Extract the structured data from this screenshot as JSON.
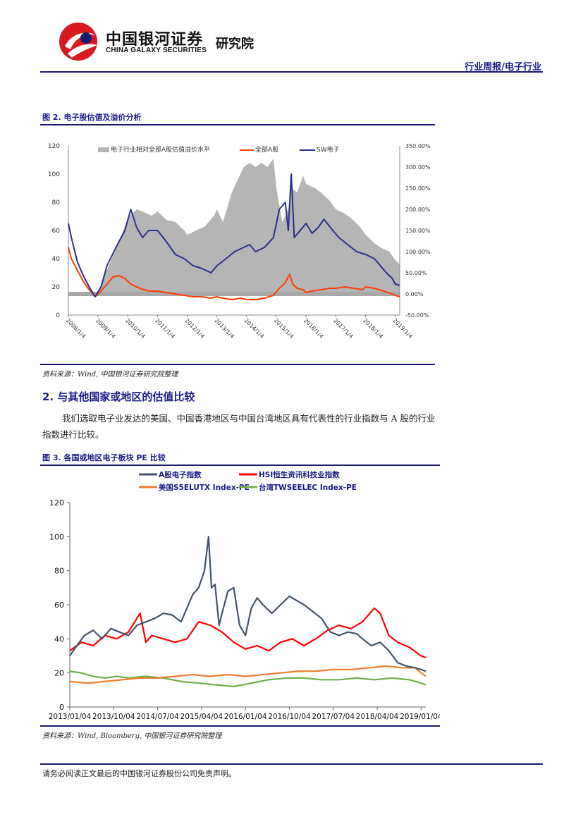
{
  "header": {
    "company_cn": "中国银河证券",
    "company_en": "CHINA GALAXY SECURITIES",
    "institute": "研究院",
    "report_type": "行业周报/电子行业"
  },
  "figure2": {
    "title": "图 2. 电子股估值及溢价分析",
    "source": "资料来源：Wind, 中国银河证券研究院整理",
    "chart_data": {
      "type": "area",
      "x_ticks": [
        "2008/1/4",
        "2009/1/4",
        "2010/1/4",
        "2011/1/4",
        "2012/1/4",
        "2013/1/4",
        "2014/1/4",
        "2015/1/4",
        "2016/1/4",
        "2017/1/4",
        "2018/1/4",
        "2019/1/4"
      ],
      "left_ticks": [
        "0",
        "20",
        "40",
        "60",
        "80",
        "100",
        "120"
      ],
      "right_ticks": [
        "-50.00%",
        "0.00%",
        "50.00%",
        "100.00%",
        "150.00%",
        "200.00%",
        "250.00%",
        "300.00%",
        "350.00%"
      ],
      "ylim_left": [
        0,
        120
      ],
      "ylim_right": [
        -50,
        350
      ],
      "legend": [
        "电子行业相对全部A股估值溢价水平",
        "全部A股",
        "SW电子"
      ],
      "colors": {
        "premium": "#b5b5b5",
        "all_a": "#ff3d00",
        "sw": "#2a2f8c"
      },
      "series": [
        {
          "name": "电子行业相对全部A股估值溢价水平",
          "axis": "right",
          "x": [
            2008.0,
            2008.3,
            2008.6,
            2008.9,
            2009.0,
            2009.2,
            2009.5,
            2009.8,
            2010.0,
            2010.3,
            2010.5,
            2010.8,
            2011.0,
            2011.3,
            2011.6,
            2011.9,
            2012.0,
            2012.3,
            2012.6,
            2012.9,
            2013.0,
            2013.2,
            2013.5,
            2013.7,
            2013.9,
            2014.1,
            2014.3,
            2014.5,
            2014.7,
            2014.9,
            2015.0,
            2015.2,
            2015.4,
            2015.5,
            2015.7,
            2015.9,
            2016.0,
            2016.3,
            2016.5,
            2016.8,
            2017.0,
            2017.3,
            2017.5,
            2017.8,
            2018.0,
            2018.3,
            2018.5,
            2018.8,
            2019.0,
            2019.15
          ],
          "values": [
            0,
            0,
            0,
            0,
            5,
            40,
            90,
            140,
            180,
            200,
            195,
            185,
            195,
            175,
            170,
            150,
            140,
            150,
            160,
            185,
            200,
            170,
            240,
            270,
            300,
            310,
            300,
            310,
            300,
            320,
            250,
            170,
            200,
            250,
            240,
            280,
            260,
            250,
            240,
            220,
            200,
            190,
            180,
            160,
            140,
            120,
            110,
            100,
            80,
            70
          ]
        },
        {
          "name": "全部A股",
          "axis": "left",
          "x": [
            2008.0,
            2008.1,
            2008.3,
            2008.5,
            2008.7,
            2008.9,
            2009.1,
            2009.3,
            2009.5,
            2009.7,
            2009.9,
            2010.1,
            2010.4,
            2010.7,
            2011.0,
            2011.3,
            2011.6,
            2011.9,
            2012.2,
            2012.5,
            2012.8,
            2013.0,
            2013.2,
            2013.5,
            2013.8,
            2014.0,
            2014.3,
            2014.6,
            2014.9,
            2015.1,
            2015.3,
            2015.45,
            2015.55,
            2015.7,
            2015.9,
            2016.0,
            2016.2,
            2016.5,
            2016.8,
            2017.0,
            2017.3,
            2017.6,
            2017.9,
            2018.0,
            2018.3,
            2018.6,
            2018.9,
            2019.0,
            2019.15
          ],
          "values": [
            48,
            40,
            32,
            24,
            18,
            13,
            17,
            22,
            27,
            28,
            26,
            22,
            19,
            17,
            17,
            16,
            15,
            14,
            13,
            13,
            12,
            13,
            12,
            11,
            12,
            11,
            11,
            12,
            14,
            19,
            23,
            29,
            22,
            19,
            18,
            16,
            17,
            18,
            19,
            19,
            20,
            19,
            18,
            20,
            19,
            17,
            15,
            14,
            13
          ]
        },
        {
          "name": "SW电子",
          "axis": "left",
          "x": [
            2008.0,
            2008.1,
            2008.3,
            2008.5,
            2008.7,
            2008.9,
            2009.1,
            2009.3,
            2009.6,
            2009.9,
            2010.1,
            2010.3,
            2010.5,
            2010.7,
            2011.0,
            2011.3,
            2011.6,
            2011.9,
            2012.2,
            2012.5,
            2012.8,
            2013.0,
            2013.3,
            2013.6,
            2013.9,
            2014.1,
            2014.3,
            2014.6,
            2014.9,
            2015.1,
            2015.3,
            2015.4,
            2015.5,
            2015.6,
            2015.8,
            2016.0,
            2016.2,
            2016.4,
            2016.6,
            2016.9,
            2017.1,
            2017.4,
            2017.7,
            2018.0,
            2018.3,
            2018.5,
            2018.7,
            2018.9,
            2019.0,
            2019.15
          ],
          "values": [
            65,
            55,
            38,
            28,
            20,
            13,
            20,
            35,
            48,
            60,
            75,
            62,
            55,
            60,
            60,
            52,
            43,
            40,
            35,
            33,
            30,
            35,
            40,
            45,
            48,
            50,
            45,
            48,
            55,
            75,
            80,
            60,
            100,
            55,
            60,
            65,
            58,
            62,
            68,
            60,
            55,
            50,
            45,
            43,
            40,
            35,
            30,
            26,
            22,
            21
          ]
        }
      ]
    }
  },
  "section": {
    "title": "2. 与其他国家或地区的估值比较",
    "body": "我们选取电子业发达的美国、中国香港地区与中国台湾地区具有代表性的行业指数与 A 股的行业指数进行比较。"
  },
  "figure3": {
    "title": "图 3. 各国或地区电子板块 PE 比较",
    "source": "资料来源：Wind, Bloomberg, 中国银河证券研究院整理",
    "chart_data": {
      "type": "line",
      "x_ticks": [
        "2013/01/04",
        "2013/10/04",
        "2014/07/04",
        "2015/04/04",
        "2016/01/04",
        "2016/10/04",
        "2017/07/04",
        "2018/04/04",
        "2019/01/04"
      ],
      "y_ticks": [
        "0",
        "20",
        "40",
        "60",
        "80",
        "100",
        "120"
      ],
      "ylim": [
        0,
        120
      ],
      "legend": [
        "A股电子指数",
        "HSI恒生资讯科技业指数",
        "美国S5ELUTX Index-PE",
        "台湾TWSEELEC Index-PE"
      ],
      "colors": {
        "a": "#44546a",
        "hsi": "#ff0000",
        "us": "#ed7d31",
        "tw": "#70ad47"
      },
      "series": [
        {
          "name": "A股电子指数",
          "x": [
            2013.0,
            2013.1,
            2013.25,
            2013.4,
            2013.55,
            2013.7,
            2013.85,
            2014.0,
            2014.15,
            2014.3,
            2014.45,
            2014.6,
            2014.75,
            2014.9,
            2015.0,
            2015.1,
            2015.2,
            2015.3,
            2015.37,
            2015.42,
            2015.48,
            2015.55,
            2015.6,
            2015.7,
            2015.8,
            2015.9,
            2016.0,
            2016.1,
            2016.2,
            2016.3,
            2016.45,
            2016.6,
            2016.75,
            2016.9,
            2017.0,
            2017.15,
            2017.3,
            2017.45,
            2017.6,
            2017.75,
            2017.9,
            2018.0,
            2018.15,
            2018.3,
            2018.45,
            2018.6,
            2018.75,
            2018.9,
            2019.0,
            2019.08
          ],
          "values": [
            30,
            35,
            42,
            45,
            40,
            46,
            44,
            42,
            48,
            50,
            52,
            55,
            54,
            50,
            58,
            66,
            70,
            80,
            100,
            70,
            72,
            48,
            55,
            68,
            70,
            48,
            42,
            58,
            64,
            60,
            55,
            60,
            65,
            62,
            60,
            56,
            52,
            44,
            42,
            44,
            43,
            40,
            36,
            38,
            33,
            26,
            24,
            23,
            22,
            21
          ]
        },
        {
          "name": "HSI恒生资讯科技业指数",
          "x": [
            2013.0,
            2013.2,
            2013.4,
            2013.6,
            2013.8,
            2014.0,
            2014.2,
            2014.3,
            2014.4,
            2014.6,
            2014.8,
            2015.0,
            2015.2,
            2015.4,
            2015.6,
            2015.8,
            2016.0,
            2016.2,
            2016.4,
            2016.6,
            2016.8,
            2017.0,
            2017.2,
            2017.4,
            2017.6,
            2017.8,
            2018.0,
            2018.2,
            2018.3,
            2018.45,
            2018.6,
            2018.8,
            2019.0,
            2019.08
          ],
          "values": [
            33,
            38,
            36,
            42,
            40,
            44,
            55,
            38,
            42,
            40,
            38,
            40,
            50,
            48,
            44,
            38,
            34,
            36,
            33,
            38,
            40,
            36,
            40,
            45,
            48,
            46,
            50,
            58,
            55,
            42,
            38,
            35,
            30,
            29
          ]
        },
        {
          "name": "美国S5ELUTX Index-PE",
          "x": [
            2013.0,
            2013.3,
            2013.6,
            2013.9,
            2014.2,
            2014.5,
            2014.8,
            2015.1,
            2015.4,
            2015.7,
            2016.0,
            2016.3,
            2016.6,
            2016.9,
            2017.2,
            2017.5,
            2017.8,
            2018.1,
            2018.4,
            2018.7,
            2018.9,
            2019.0,
            2019.08
          ],
          "values": [
            15,
            14,
            15,
            16,
            17,
            17,
            18,
            19,
            18,
            19,
            18,
            19,
            20,
            21,
            21,
            22,
            22,
            23,
            24,
            23,
            23,
            20,
            18
          ]
        },
        {
          "name": "台湾TWSEELEC Index-PE",
          "x": [
            2013.0,
            2013.2,
            2013.4,
            2013.6,
            2013.8,
            2014.0,
            2014.3,
            2014.6,
            2014.9,
            2015.2,
            2015.5,
            2015.8,
            2016.1,
            2016.4,
            2016.7,
            2017.0,
            2017.3,
            2017.6,
            2017.9,
            2018.2,
            2018.5,
            2018.8,
            2019.0,
            2019.08
          ],
          "values": [
            21,
            20,
            18,
            17,
            18,
            17,
            18,
            17,
            15,
            14,
            13,
            12,
            14,
            16,
            17,
            17,
            16,
            16,
            17,
            16,
            17,
            16,
            14,
            13
          ]
        }
      ]
    }
  },
  "footer": {
    "disclaimer": "请务必阅读正文最后的中国银河证券股份公司免责声明。"
  }
}
